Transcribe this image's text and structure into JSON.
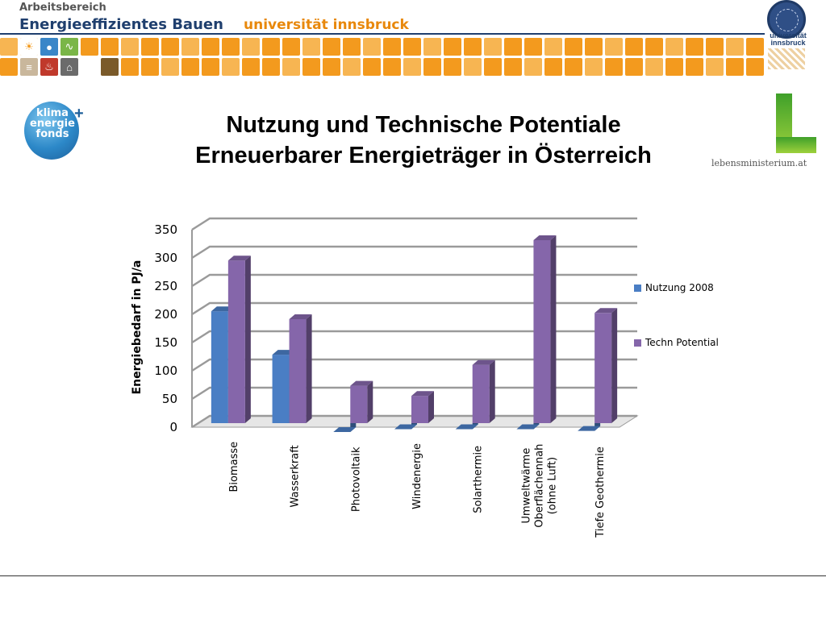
{
  "header": {
    "dept_line1": "Arbeitsbereich",
    "dept_line2": "Energieeffizientes Bauen",
    "university": "universität innsbruck",
    "seal_text": "universität innsbruck",
    "tile_color_a": "#f39a1e",
    "tile_color_b": "#f7b552",
    "accent_navy": "#1f3f6e"
  },
  "logos": {
    "klima": "klima energie fonds",
    "klima_plus": "+",
    "lebensministerium": "lebensministerium.at"
  },
  "slide": {
    "title_line1": "Nutzung und Technische Potentiale",
    "title_line2": "Erneuerbarer Energieträger in Österreich"
  },
  "chart_data": {
    "type": "bar",
    "title": "",
    "ylabel": "Energiebedarf in PJ/a",
    "xlabel": "",
    "ylim": [
      0,
      350
    ],
    "yticks": [
      0,
      50,
      100,
      150,
      200,
      250,
      300,
      350
    ],
    "grid": true,
    "legend_position": "right",
    "categories": [
      [
        "Biomasse"
      ],
      [
        "Wasserkraft"
      ],
      [
        "Photovoltaik"
      ],
      [
        "Windenergie"
      ],
      [
        "Solarthermie"
      ],
      [
        "Umweltwärme",
        "Oberflächennah",
        "(ohne Luft)"
      ],
      [
        "Tiefe Geothermie"
      ]
    ],
    "series": [
      {
        "name": "Nutzung 2008",
        "color": "#4a7ec4",
        "values": [
          214,
          137,
          0,
          5,
          5,
          5,
          2
        ]
      },
      {
        "name": "Techn Potential",
        "color": "#8566aa",
        "values": [
          304,
          200,
          82,
          64,
          119,
          340,
          211
        ]
      }
    ]
  }
}
